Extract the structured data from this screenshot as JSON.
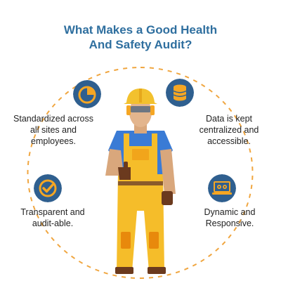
{
  "title": {
    "line1": "What Makes a Good Health",
    "line2": "And Safety Audit?"
  },
  "features": [
    {
      "icon": "pie-chart-icon",
      "line1": "Standardized across",
      "line2": "all sites and",
      "line3": "employees."
    },
    {
      "icon": "database-icon",
      "line1": "Data is kept",
      "line2": "centralized and",
      "line3": "accessible."
    },
    {
      "icon": "check-circle-icon",
      "line1": "Transparent and",
      "line2": "audit-able."
    },
    {
      "icon": "laptop-gears-icon",
      "line1": "Dynamic and",
      "line2": "Responsive."
    }
  ],
  "colors": {
    "title": "#2f6f9f",
    "badge": "#2f5f8f",
    "accent": "#f5a623",
    "dash": "#f0a640",
    "vest": "#f5bd2a",
    "helmet": "#f2c12e",
    "shirt": "#3a7bd5"
  }
}
